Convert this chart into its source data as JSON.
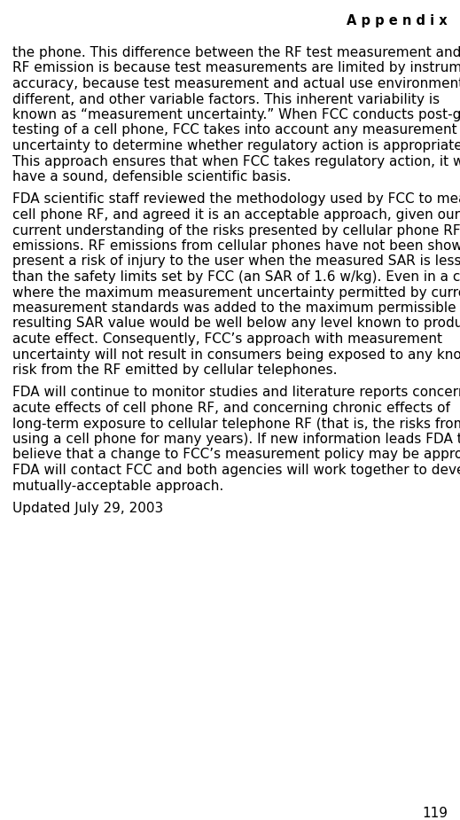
{
  "background_color": "#ffffff",
  "header_text": "A p p e n d i x",
  "body_color": "#000000",
  "page_number": "119",
  "paragraphs": [
    "the phone. This difference between the RF test measurement and actual RF emission is because test measurements are limited by instrument accuracy, because test measurement and actual use environments are different, and other variable factors. This inherent variability is known as “measurement uncertainty.” When FCC conducts post-grant testing of a cell phone, FCC takes into account any measurement uncertainty to determine whether regulatory action is appropriate. This approach ensures that when FCC takes regulatory action, it will have a sound, defensible scientific basis.",
    "FDA scientific staff reviewed the methodology used by FCC to measure cell phone RF, and agreed it is an acceptable approach, given our current understanding of the risks presented by cellular phone RF emissions. RF emissions from cellular phones have not been shown to present a risk of injury to the user when the measured SAR is less than the safety limits set by FCC (an SAR of 1.6 w/kg). Even in a case where the maximum measurement uncertainty permitted by current measurement standards was added to the maximum permissible SAR, the resulting SAR value would be well below any level known to produce an acute effect. Consequently, FCC’s approach with measurement uncertainty will not result in consumers being exposed to any known risk from the RF emitted by cellular telephones.",
    "FDA will continue to monitor studies and literature reports concerning acute effects of cell phone RF, and concerning chronic effects of long-term exposure to cellular telephone RF (that is, the risks from using a cell phone for many years). If new information leads FDA to believe that a change to FCC’s measurement policy may be appropriate, FDA will contact FCC and both agencies will work together to develop a mutually-acceptable approach.",
    "Updated July 29, 2003"
  ]
}
